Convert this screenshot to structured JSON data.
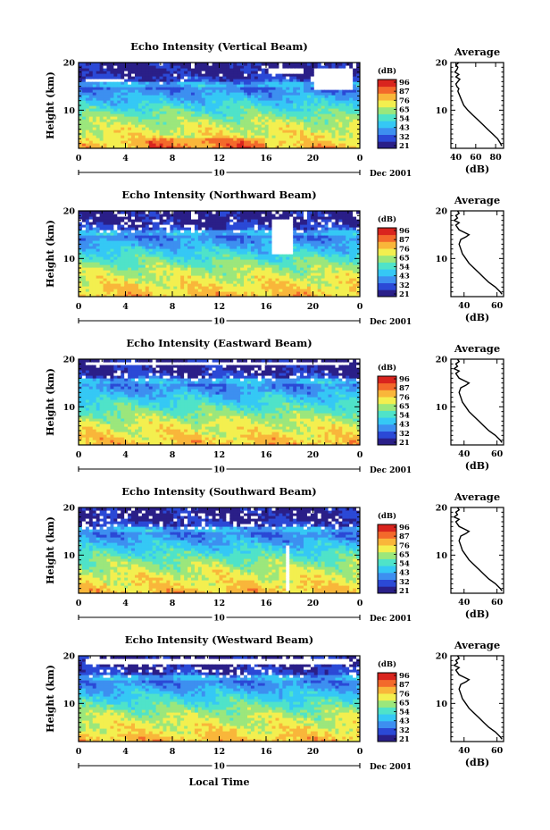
{
  "chart_data": {
    "type": "heatmap",
    "xlabel": "Local Time",
    "date_label": "Dec 2001",
    "day_label": "10",
    "x_ticks": [
      "0",
      "4",
      "8",
      "12",
      "16",
      "20",
      "0"
    ],
    "xlim": [
      0,
      24
    ],
    "y_ticks": [
      "10",
      "20"
    ],
    "ylim": [
      2,
      20
    ],
    "ylabel": "Height (km)",
    "colorbar_unit": "(dB)",
    "colors": {
      "scale": [
        "#2a1f88",
        "#2b49d6",
        "#3d8ff0",
        "#35c8f5",
        "#4fe3c9",
        "#9be77c",
        "#f3ef4f",
        "#f9b63a",
        "#f3692b",
        "#d9241e"
      ]
    },
    "profile_title": "Average",
    "profile_xlabel": "(dB)",
    "panels": [
      {
        "title": "Echo Intensity (Vertical Beam)",
        "colorbar_ticks": [
          "96",
          "87",
          "76",
          "65",
          "54",
          "43",
          "32",
          "21"
        ],
        "profile_x_ticks": [
          "40",
          "60",
          "80"
        ],
        "profile_xlim": [
          35,
          88
        ],
        "profile": {
          "height": [
            2.5,
            3,
            4,
            5,
            6,
            7,
            8,
            9,
            10,
            11,
            12,
            13,
            14,
            14.5,
            15,
            15.5,
            16,
            16.5,
            17,
            17.5,
            18,
            18.5,
            19,
            19.5,
            20
          ],
          "value": [
            86,
            85,
            82,
            77,
            72,
            67,
            62,
            57,
            52,
            48,
            46,
            44,
            42,
            43,
            41,
            40,
            42,
            44,
            40,
            43,
            39,
            41,
            42,
            40,
            43
          ]
        }
      },
      {
        "title": "Echo Intensity (Northward Beam)",
        "colorbar_ticks": [
          "96",
          "87",
          "76",
          "65",
          "54",
          "43",
          "32",
          "21"
        ],
        "profile_x_ticks": [
          "40",
          "60"
        ],
        "profile_xlim": [
          32,
          64
        ],
        "profile": {
          "height": [
            2.5,
            3,
            4,
            5,
            6,
            7,
            8,
            9,
            10,
            11,
            12,
            13,
            14,
            14.5,
            15,
            15.5,
            16,
            16.5,
            17,
            17.5,
            18,
            18.5,
            19,
            19.5,
            20
          ],
          "value": [
            63,
            62,
            59,
            55,
            52,
            49,
            46,
            43,
            41,
            39,
            38,
            37,
            38,
            41,
            43,
            40,
            37,
            36,
            35,
            37,
            34,
            36,
            35,
            37,
            36
          ]
        }
      },
      {
        "title": "Echo Intensity (Eastward Beam)",
        "colorbar_ticks": [
          "96",
          "87",
          "76",
          "65",
          "54",
          "43",
          "32",
          "21"
        ],
        "profile_x_ticks": [
          "40",
          "60"
        ],
        "profile_xlim": [
          32,
          64
        ],
        "profile": {
          "height": [
            2.5,
            3,
            4,
            5,
            6,
            7,
            8,
            9,
            10,
            11,
            12,
            13,
            14,
            14.5,
            15,
            15.5,
            16,
            16.5,
            17,
            17.5,
            18,
            18.5,
            19,
            19.5,
            20
          ],
          "value": [
            63,
            62,
            59,
            55,
            52,
            49,
            46,
            43,
            41,
            39,
            38,
            37,
            38,
            41,
            43,
            40,
            37,
            36,
            35,
            37,
            34,
            36,
            35,
            37,
            36
          ]
        }
      },
      {
        "title": "Echo Intensity (Southward Beam)",
        "colorbar_ticks": [
          "96",
          "87",
          "76",
          "65",
          "54",
          "43",
          "32",
          "21"
        ],
        "profile_x_ticks": [
          "40",
          "60"
        ],
        "profile_xlim": [
          32,
          64
        ],
        "profile": {
          "height": [
            2.5,
            3,
            4,
            5,
            6,
            7,
            8,
            9,
            10,
            11,
            12,
            13,
            14,
            14.5,
            15,
            15.5,
            16,
            16.5,
            17,
            17.5,
            18,
            18.5,
            19,
            19.5,
            20
          ],
          "value": [
            63,
            62,
            59,
            55,
            52,
            49,
            46,
            43,
            41,
            39,
            38,
            37,
            38,
            41,
            43,
            40,
            37,
            36,
            35,
            37,
            34,
            36,
            35,
            37,
            36
          ]
        }
      },
      {
        "title": "Echo Intensity (Westward Beam)",
        "colorbar_ticks": [
          "96",
          "87",
          "76",
          "65",
          "54",
          "43",
          "32",
          "21"
        ],
        "profile_x_ticks": [
          "40",
          "60"
        ],
        "profile_xlim": [
          32,
          64
        ],
        "profile": {
          "height": [
            2.5,
            3,
            4,
            5,
            6,
            7,
            8,
            9,
            10,
            11,
            12,
            13,
            14,
            14.5,
            15,
            15.5,
            16,
            16.5,
            17,
            17.5,
            18,
            18.5,
            19,
            19.5,
            20
          ],
          "value": [
            63,
            62,
            59,
            55,
            52,
            49,
            46,
            43,
            41,
            39,
            38,
            37,
            38,
            41,
            43,
            40,
            37,
            36,
            35,
            37,
            34,
            36,
            35,
            37,
            36
          ]
        }
      }
    ]
  }
}
